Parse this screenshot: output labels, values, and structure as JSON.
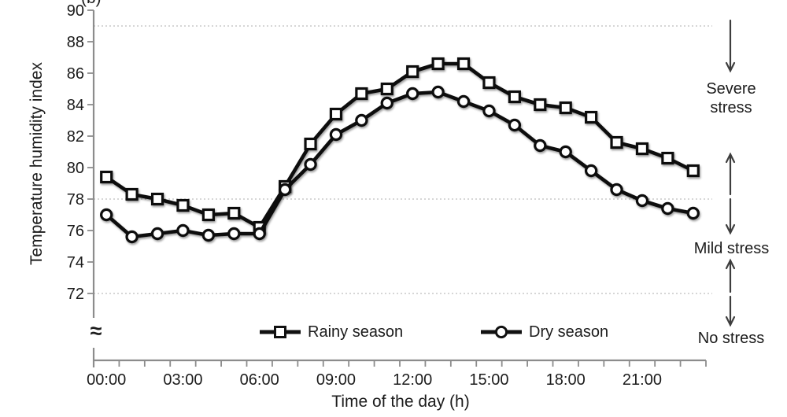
{
  "figure": {
    "panel_label": "(b)",
    "background": "#ffffff"
  },
  "chart_data": {
    "type": "line",
    "title": "",
    "xlabel": "Time of the day (h)",
    "ylabel": "Temperature humidity index",
    "categories": [
      "00:00",
      "01:00",
      "02:00",
      "03:00",
      "04:00",
      "05:00",
      "06:00",
      "07:00",
      "08:00",
      "09:00",
      "10:00",
      "11:00",
      "12:00",
      "13:00",
      "14:00",
      "15:00",
      "16:00",
      "17:00",
      "18:00",
      "19:00",
      "20:00",
      "21:00",
      "22:00",
      "23:00"
    ],
    "x_label_every": 3,
    "y_ticks": [
      72,
      74,
      76,
      78,
      80,
      82,
      84,
      86,
      88,
      90
    ],
    "ylim": [
      72,
      90
    ],
    "axis_break_symbol": "≈",
    "dashed_gridlines_at": [
      89,
      78,
      72
    ],
    "grid": "horizontal-dashed",
    "legend_position": "bottom-inside",
    "series": [
      {
        "name": "Rainy season",
        "marker": "square",
        "color": "#111111",
        "values": [
          79.4,
          78.3,
          78.0,
          77.6,
          77.0,
          77.1,
          76.2,
          78.8,
          81.5,
          83.4,
          84.7,
          85.0,
          86.1,
          86.6,
          86.6,
          85.4,
          84.5,
          84.0,
          83.8,
          83.2,
          81.6,
          81.2,
          80.6,
          79.8
        ]
      },
      {
        "name": "Dry season",
        "marker": "circle",
        "color": "#111111",
        "values": [
          77.0,
          75.6,
          75.8,
          76.0,
          75.7,
          75.8,
          75.8,
          78.6,
          80.2,
          82.1,
          83.0,
          84.1,
          84.7,
          84.8,
          84.2,
          83.6,
          82.7,
          81.4,
          81.0,
          79.8,
          78.6,
          77.9,
          77.4,
          77.1
        ]
      }
    ]
  },
  "annotations": [
    {
      "label": "Severe stress"
    },
    {
      "label": "Mild stress"
    },
    {
      "label": "No stress"
    }
  ],
  "colors": {
    "series": "#111111",
    "grid": "#bdbdbd",
    "axis": "#8c8c8c",
    "text": "#1c1c1c",
    "arrow": "#3d3d3d",
    "background": "#ffffff"
  }
}
